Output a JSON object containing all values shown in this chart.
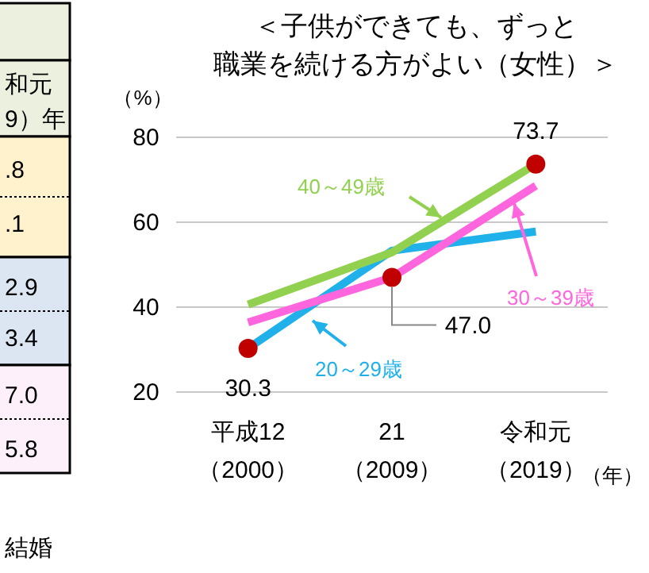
{
  "chart_data": [
    {
      "type": "other",
      "annotations": [
        "和元",
        "9）年",
        ".8",
        ".1",
        "2.9",
        "3.4",
        "7.0",
        "5.8",
        "結婚"
      ]
    },
    {
      "type": "line",
      "title": "＜子供ができても、ずっと職業を続ける方がよい（女性）＞",
      "ylabel": "（%）",
      "xlabel": "（年）",
      "categories": [
        "平成12（2000）",
        "21（2009）",
        "令和元（2019）"
      ],
      "ylim": [
        20,
        80
      ],
      "yticks": [
        20,
        40,
        60,
        80
      ],
      "grid": "y",
      "marker": "none",
      "line_style": "solid",
      "series": [
        {
          "name": "20～29歳",
          "color": "#20b0ea",
          "values": [
            30.3,
            53.3,
            57.8
          ]
        },
        {
          "name": "40～49歳",
          "color": "#92d050",
          "values": [
            40.6,
            52.9,
            73.7
          ]
        },
        {
          "name": "30～39歳",
          "color": "#ff66dd",
          "values": [
            36.4,
            47.0,
            68.6
          ]
        },
        {
          "type": "scatter",
          "marker": "circle",
          "color": "#c00000",
          "x": [
            "平成12（2000）",
            "21（2009）",
            "令和元（2019）"
          ],
          "values": [
            30.3,
            47.0,
            73.7
          ],
          "value_labels": [
            "30.3",
            "47.0",
            "73.7"
          ]
        }
      ]
    }
  ]
}
